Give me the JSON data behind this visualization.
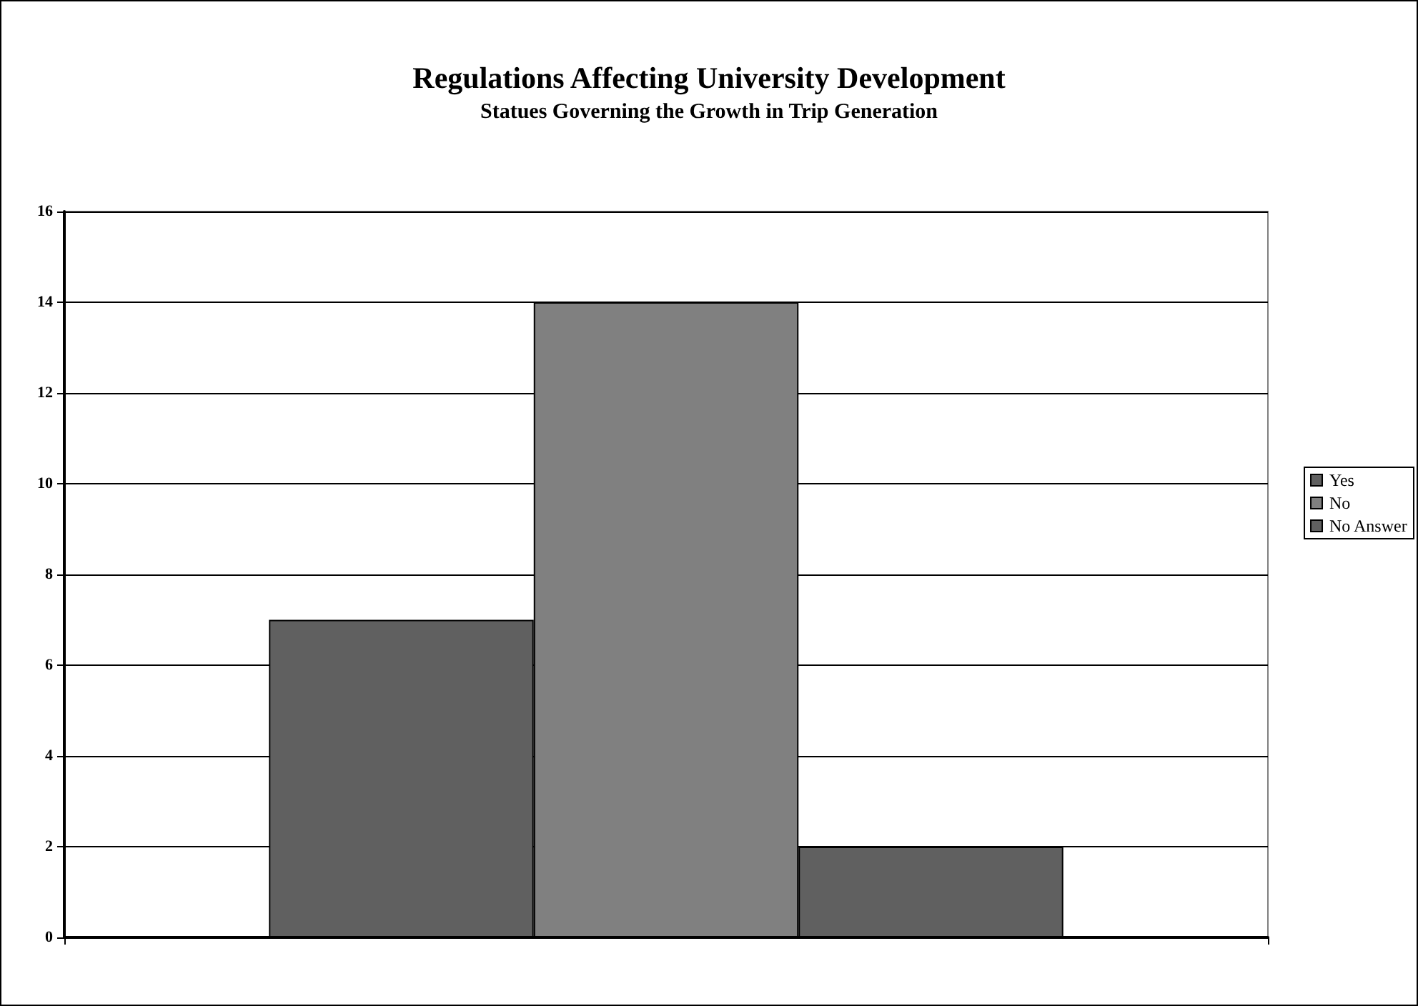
{
  "chart_data": {
    "type": "bar",
    "title": "Regulations Affecting University Development",
    "subtitle": "Statues Governing the Growth in Trip Generation",
    "categories": [
      null
    ],
    "series": [
      {
        "name": "Yes",
        "color": "#606060",
        "values": [
          7
        ]
      },
      {
        "name": "No",
        "color": "#808080",
        "values": [
          14
        ]
      },
      {
        "name": "No Answer",
        "color": "#606060",
        "values": [
          2
        ]
      }
    ],
    "ylim": [
      0,
      16
    ],
    "yticks": [
      0,
      2,
      4,
      6,
      8,
      10,
      12,
      14,
      16
    ],
    "grid": "y",
    "legend": "right"
  }
}
